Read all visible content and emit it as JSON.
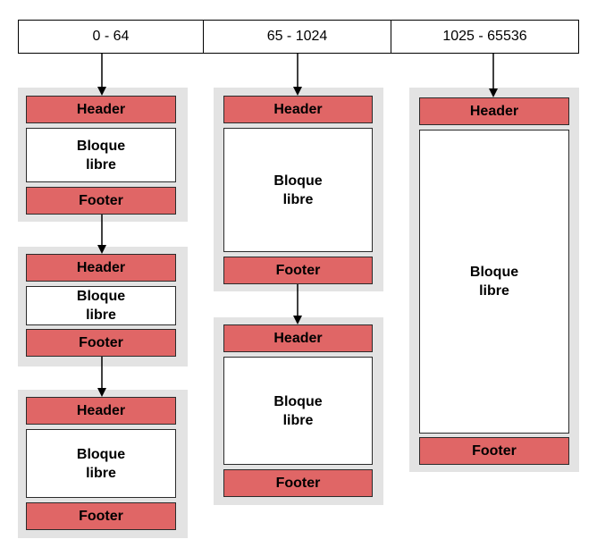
{
  "ranges": [
    "0 - 64",
    "65 - 1024",
    "1025 - 65536"
  ],
  "block": {
    "header": "Header",
    "body_line1": "Bloque",
    "body_line2": "libre",
    "footer": "Footer"
  },
  "colors": {
    "header_footer_fill": "#e06666",
    "panel_fill": "#e3e3e3",
    "block_fill": "#ffffff",
    "line": "#000000"
  }
}
